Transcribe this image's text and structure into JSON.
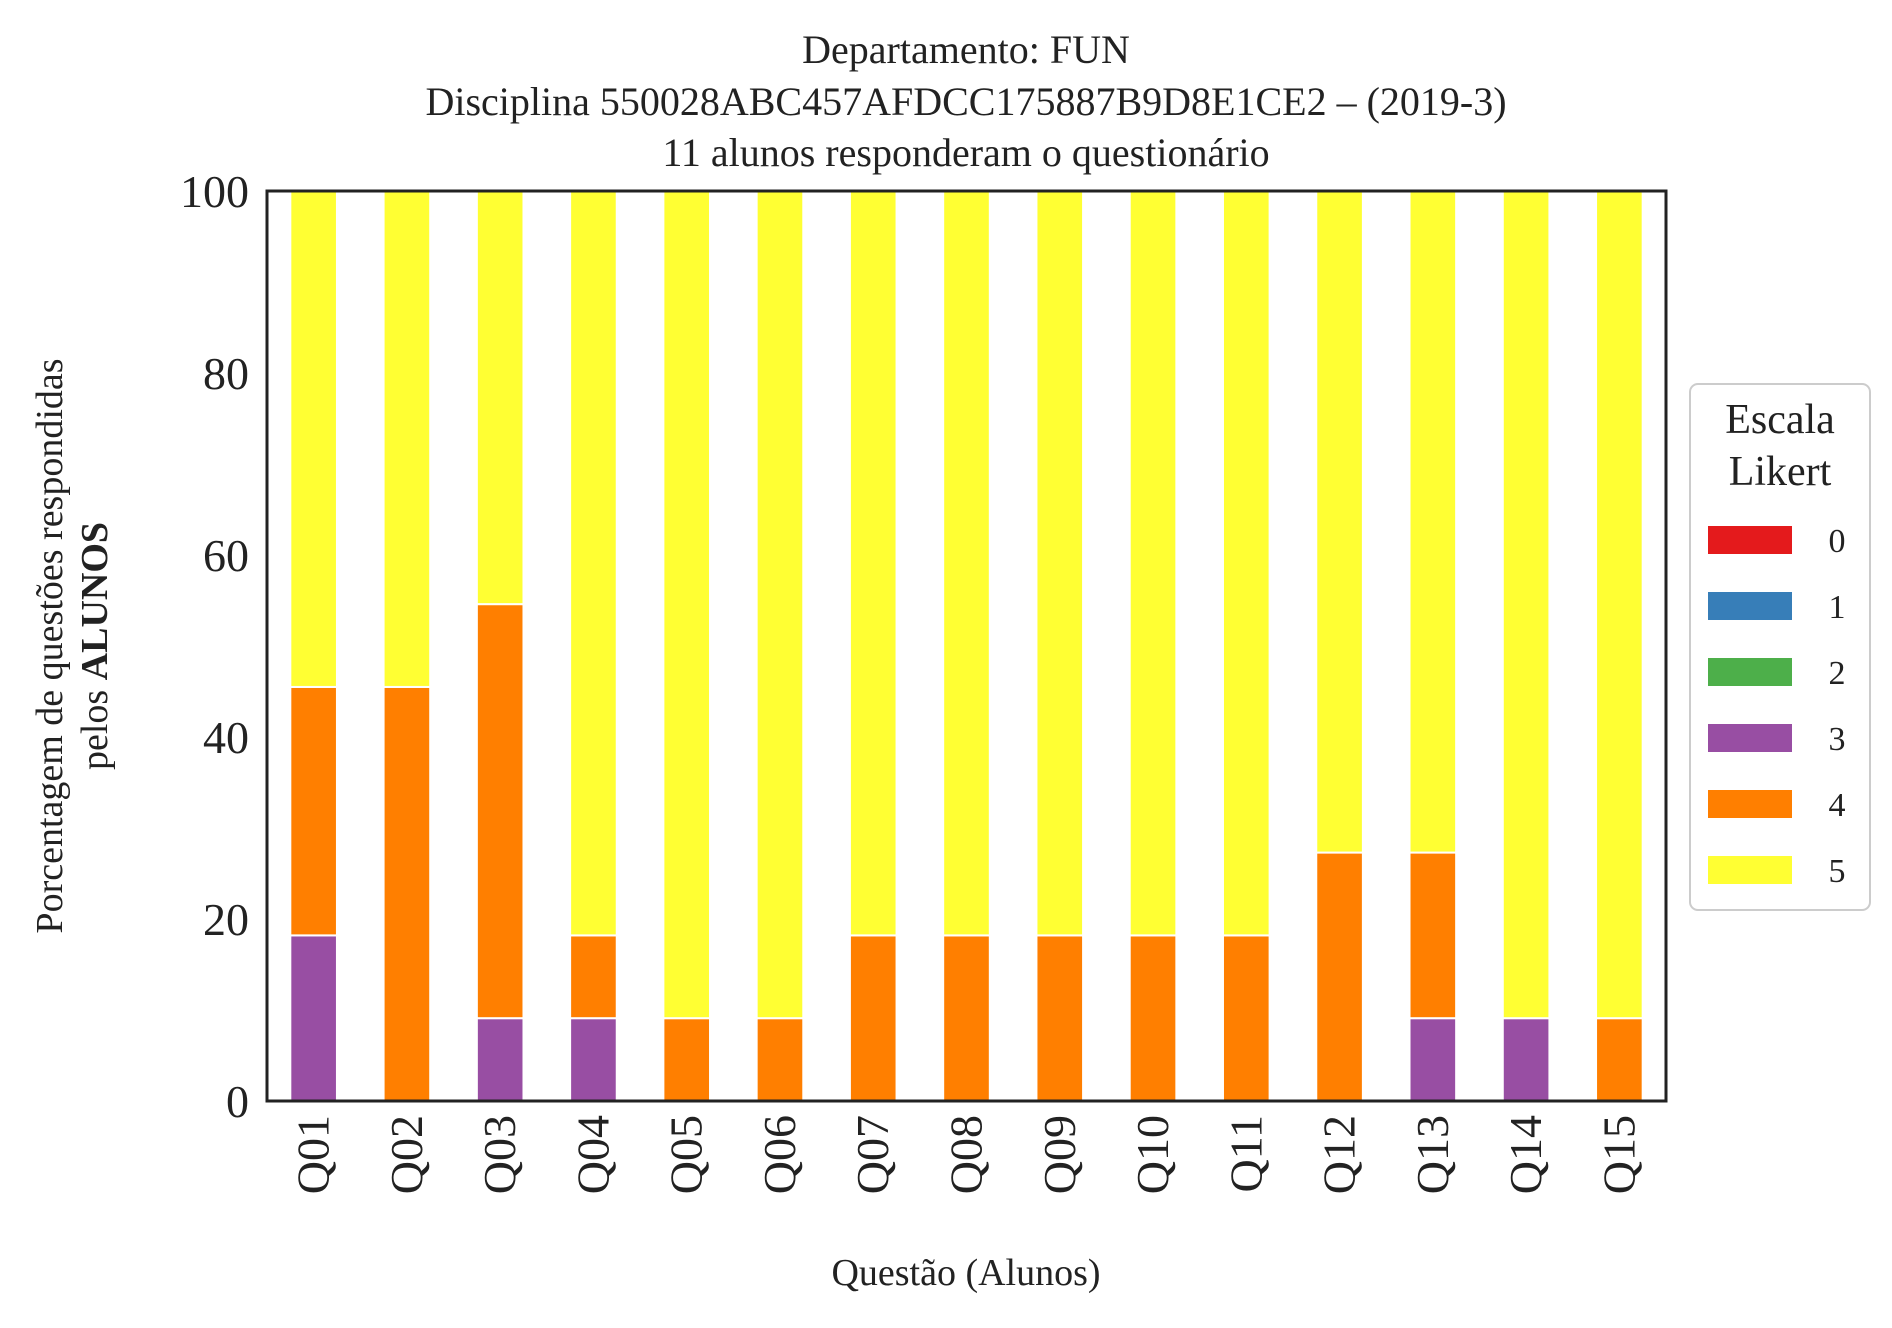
{
  "chart_data": {
    "type": "bar",
    "stacked": true,
    "title_lines": [
      "Departamento: FUN",
      "Disciplina 550028ABC457AFDCC175887B9D8E1CE2 – (2019-3)",
      "11 alunos responderam o questionário"
    ],
    "xlabel": "Questão (Alunos)",
    "ylabel_line1": "Porcentagem de questões respondidas",
    "ylabel_line2_prefix": "pelos ",
    "ylabel_line2_bold": "ALUNOS",
    "ylim": [
      0,
      100
    ],
    "yticks": [
      "0",
      "20",
      "40",
      "60",
      "80",
      "100"
    ],
    "categories": [
      "Q01",
      "Q02",
      "Q03",
      "Q04",
      "Q05",
      "Q06",
      "Q07",
      "Q08",
      "Q09",
      "Q10",
      "Q11",
      "Q12",
      "Q13",
      "Q14",
      "Q15"
    ],
    "series": [
      {
        "name": "0",
        "color": "#e41a1c",
        "values": [
          0,
          0,
          0,
          0,
          0,
          0,
          0,
          0,
          0,
          0,
          0,
          0,
          0,
          0,
          0
        ]
      },
      {
        "name": "1",
        "color": "#377eb8",
        "values": [
          0,
          0,
          0,
          0,
          0,
          0,
          0,
          0,
          0,
          0,
          0,
          0,
          0,
          0,
          0
        ]
      },
      {
        "name": "2",
        "color": "#4daf4a",
        "values": [
          0,
          0,
          0,
          0,
          0,
          0,
          0,
          0,
          0,
          0,
          0,
          0,
          0,
          0,
          0
        ]
      },
      {
        "name": "3",
        "color": "#984ea3",
        "values": [
          18.2,
          0,
          9.1,
          9.1,
          0,
          0,
          0,
          0,
          0,
          0,
          0,
          0,
          9.1,
          9.1,
          0
        ]
      },
      {
        "name": "4",
        "color": "#ff7f00",
        "values": [
          27.3,
          45.5,
          45.5,
          9.1,
          9.1,
          9.1,
          18.2,
          18.2,
          18.2,
          18.2,
          18.2,
          27.3,
          18.2,
          0,
          9.1
        ]
      },
      {
        "name": "5",
        "color": "#ffff33",
        "values": [
          54.5,
          54.5,
          45.5,
          81.8,
          90.9,
          90.9,
          81.8,
          81.8,
          81.8,
          81.8,
          81.8,
          72.7,
          72.7,
          90.9,
          90.9
        ]
      }
    ],
    "legend": {
      "title_lines": [
        "Escala",
        "Likert"
      ],
      "position": "center-right, outside"
    },
    "grid": false
  }
}
